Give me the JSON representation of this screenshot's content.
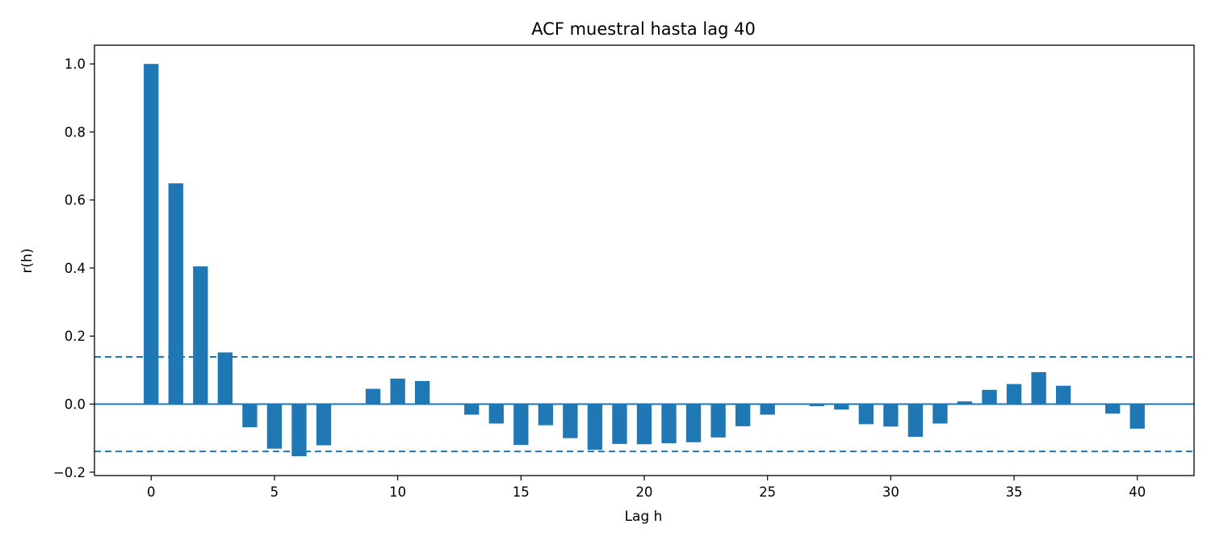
{
  "chart_data": {
    "type": "bar",
    "title": "ACF muestral hasta lag 40",
    "xlabel": "Lag h",
    "ylabel": "r(h)",
    "xlim": [
      -2.3,
      42.3
    ],
    "ylim": [
      -0.21,
      1.055
    ],
    "xticks": [
      0,
      5,
      10,
      15,
      20,
      25,
      30,
      35,
      40
    ],
    "yticks": [
      -0.2,
      0.0,
      0.2,
      0.4,
      0.6,
      0.8,
      1.0
    ],
    "ytick_labels": [
      "−0.2",
      "0.0",
      "0.2",
      "0.4",
      "0.6",
      "0.8",
      "1.0"
    ],
    "grid": false,
    "bar_color": "#1f77b4",
    "bar_width": 0.6,
    "lags": [
      0,
      1,
      2,
      3,
      4,
      5,
      6,
      7,
      8,
      9,
      10,
      11,
      12,
      13,
      14,
      15,
      16,
      17,
      18,
      19,
      20,
      21,
      22,
      23,
      24,
      25,
      26,
      27,
      28,
      29,
      30,
      31,
      32,
      33,
      34,
      35,
      36,
      37,
      38,
      39,
      40
    ],
    "values": [
      1.0,
      0.649,
      0.405,
      0.152,
      -0.068,
      -0.131,
      -0.153,
      -0.121,
      -0.002,
      0.045,
      0.075,
      0.068,
      -0.002,
      -0.031,
      -0.057,
      -0.12,
      -0.062,
      -0.1,
      -0.134,
      -0.117,
      -0.118,
      -0.115,
      -0.112,
      -0.098,
      -0.065,
      -0.031,
      -0.002,
      -0.006,
      -0.016,
      -0.059,
      -0.066,
      -0.096,
      -0.057,
      0.008,
      0.042,
      0.059,
      0.094,
      0.054,
      -0.002,
      -0.028,
      -0.072
    ],
    "reference_lines": {
      "zero": 0.0,
      "confidence_band": [
        -0.139,
        0.139
      ],
      "line_color": "#1f77b4"
    }
  }
}
